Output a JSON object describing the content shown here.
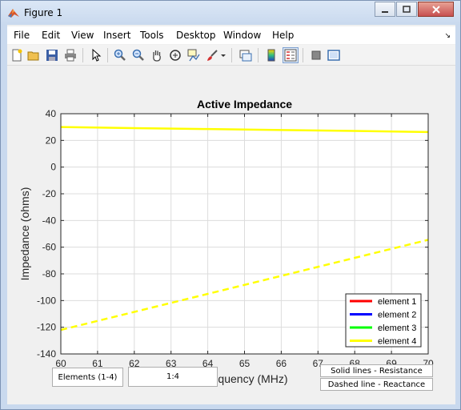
{
  "window": {
    "title": "Figure 1"
  },
  "menu": [
    "File",
    "Edit",
    "View",
    "Insert",
    "Tools",
    "Desktop",
    "Window",
    "Help"
  ],
  "toolbar": {
    "icons": [
      "new-figure-icon",
      "open-file-icon",
      "save-icon",
      "print-icon",
      "pointer-icon",
      "zoom-in-icon",
      "zoom-out-icon",
      "pan-hand-icon",
      "rotate-3d-icon",
      "data-cursor-icon",
      "brush-icon",
      "brush-dropdown-icon",
      "link-plot-icon",
      "insert-colorbar-icon",
      "insert-legend-icon",
      "hide-plot-tools-icon",
      "show-plot-tools-icon"
    ]
  },
  "controls": {
    "elements_label": "Elements (1-4)",
    "elements_value": "1:4",
    "solid_note": "Solid lines - Resistance",
    "dashed_note": "Dashed line - Reactance"
  },
  "chart_data": {
    "type": "line",
    "title": "Active Impedance",
    "xlabel": "Frequency (MHz)",
    "ylabel": "Impedance (ohms)",
    "xlim": [
      60,
      70
    ],
    "ylim": [
      -140,
      40
    ],
    "xticks": [
      60,
      61,
      62,
      63,
      64,
      65,
      66,
      67,
      68,
      69,
      70
    ],
    "yticks": [
      40,
      20,
      0,
      -20,
      -40,
      -60,
      -80,
      -100,
      -120,
      -140
    ],
    "grid": true,
    "legend_position": "bottom-right",
    "legend": [
      {
        "name": "element 1",
        "color": "#ff0000"
      },
      {
        "name": "element 2",
        "color": "#0000ff"
      },
      {
        "name": "element 3",
        "color": "#00ff00"
      },
      {
        "name": "element 4",
        "color": "#ffff00"
      }
    ],
    "series": [
      {
        "name": "element 4 resistance",
        "style": "solid",
        "color": "#ffff00",
        "x": [
          60,
          62,
          64,
          66,
          68,
          70
        ],
        "y": [
          30,
          29.2,
          28.5,
          27.8,
          27.1,
          26.3
        ]
      },
      {
        "name": "element 4 reactance",
        "style": "dashed",
        "color": "#ffff00",
        "x": [
          60,
          62,
          64,
          66,
          68,
          70
        ],
        "y": [
          -122,
          -108.5,
          -95,
          -81.5,
          -68,
          -54.5
        ]
      }
    ]
  }
}
